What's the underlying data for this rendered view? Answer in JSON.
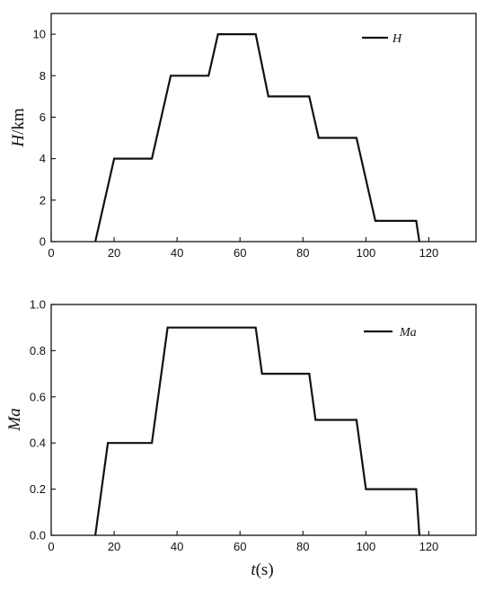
{
  "chart_data": [
    {
      "type": "line",
      "xlabel": "",
      "ylabel_main": "H",
      "ylabel_unit": "/km",
      "xlim": [
        0,
        135
      ],
      "ylim": [
        0,
        11
      ],
      "xticks": [
        "0",
        "20",
        "40",
        "60",
        "80",
        "100",
        "120"
      ],
      "yticks": [
        "0",
        "2",
        "4",
        "6",
        "8",
        "10"
      ],
      "legend": "top-right",
      "grid": false,
      "series": [
        {
          "name": "H",
          "x": [
            14,
            20,
            32,
            38,
            50,
            53,
            65,
            69,
            82,
            85,
            97,
            103,
            116,
            117
          ],
          "y": [
            0,
            4,
            4,
            8,
            8,
            10,
            10,
            7,
            7,
            5,
            5,
            1,
            1,
            0
          ]
        }
      ]
    },
    {
      "type": "line",
      "xlabel_main": "t",
      "xlabel_unit": "(s)",
      "ylabel_main": "Ma",
      "ylabel_unit": "",
      "xlim": [
        0,
        135
      ],
      "ylim": [
        0,
        1.0
      ],
      "xticks": [
        "0",
        "20",
        "40",
        "60",
        "80",
        "100",
        "120"
      ],
      "yticks": [
        "0.0",
        "0.2",
        "0.4",
        "0.6",
        "0.8",
        "1.0"
      ],
      "legend": "top-right",
      "grid": false,
      "series": [
        {
          "name": "Ma",
          "x": [
            14,
            18,
            32,
            37,
            65,
            67,
            82,
            84,
            97,
            100,
            116,
            117
          ],
          "y": [
            0,
            0.4,
            0.4,
            0.9,
            0.9,
            0.7,
            0.7,
            0.5,
            0.5,
            0.2,
            0.2,
            0
          ]
        }
      ]
    }
  ]
}
